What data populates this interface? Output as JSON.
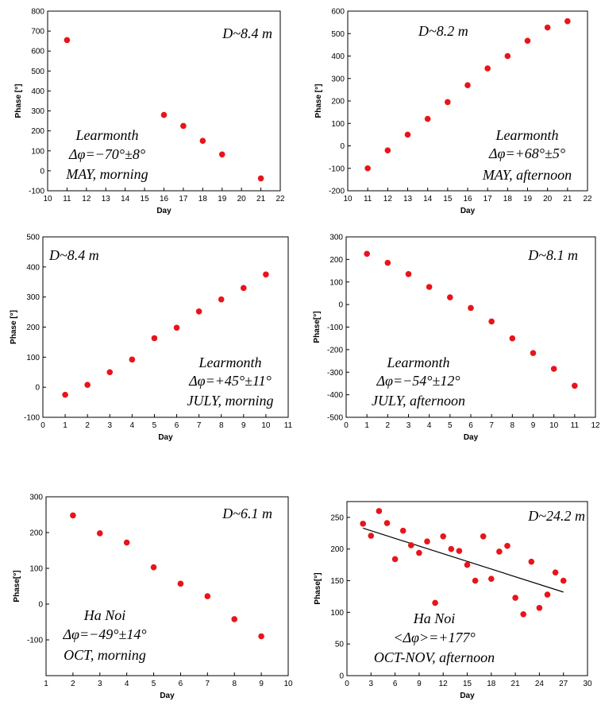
{
  "chart_data": [
    {
      "type": "scatter",
      "xlabel": "Day",
      "ylabel": "Phase [°]",
      "xlim": [
        10,
        22
      ],
      "ylim": [
        -100,
        800
      ],
      "xticks": [
        10,
        11,
        12,
        13,
        14,
        15,
        16,
        17,
        18,
        19,
        20,
        21,
        22
      ],
      "yticks": [
        -100,
        0,
        100,
        200,
        300,
        400,
        500,
        600,
        700,
        800
      ],
      "x": [
        11,
        16,
        17,
        18,
        19,
        21
      ],
      "y": [
        655,
        280,
        225,
        150,
        82,
        -38
      ],
      "annotations": {
        "distance": "D~8.4 m",
        "site": "Learmonth",
        "shift": "Δφ=−70°±8°",
        "period": "MAY, morning"
      }
    },
    {
      "type": "scatter",
      "xlabel": "Day",
      "ylabel": "Phase [°]",
      "xlim": [
        10,
        22
      ],
      "ylim": [
        -200,
        600
      ],
      "xticks": [
        10,
        11,
        12,
        13,
        14,
        15,
        16,
        17,
        18,
        19,
        20,
        21,
        22
      ],
      "yticks": [
        -200,
        -100,
        0,
        100,
        200,
        300,
        400,
        500,
        600
      ],
      "x": [
        11,
        12,
        13,
        14,
        15,
        16,
        17,
        18,
        19,
        20,
        21
      ],
      "y": [
        -100,
        -20,
        50,
        120,
        195,
        270,
        345,
        400,
        468,
        527,
        555
      ],
      "annotations": {
        "distance": "D~8.2 m",
        "site": "Learmonth",
        "shift": "Δφ=+68°±5°",
        "period": "MAY, afternoon"
      }
    },
    {
      "type": "scatter",
      "xlabel": "Day",
      "ylabel": "Phase [°]",
      "xlim": [
        0,
        11
      ],
      "ylim": [
        -100,
        500
      ],
      "xticks": [
        0,
        1,
        2,
        3,
        4,
        5,
        6,
        7,
        8,
        9,
        10,
        11
      ],
      "yticks": [
        -100,
        0,
        100,
        200,
        300,
        400,
        500
      ],
      "x": [
        1,
        2,
        3,
        4,
        5,
        6,
        7,
        8,
        9,
        10
      ],
      "y": [
        -25,
        8,
        50,
        92,
        163,
        198,
        252,
        292,
        330,
        375
      ],
      "annotations": {
        "distance": "D~8.4 m",
        "site": "Learmonth",
        "shift": "Δφ=+45°±11°",
        "period": "JULY, morning"
      }
    },
    {
      "type": "scatter",
      "xlabel": "Day",
      "ylabel": "Phase[°]",
      "xlim": [
        0,
        12
      ],
      "ylim": [
        -500,
        300
      ],
      "xticks": [
        0,
        1,
        2,
        3,
        4,
        5,
        6,
        7,
        8,
        9,
        10,
        11,
        12
      ],
      "yticks": [
        -500,
        -400,
        -300,
        -200,
        -100,
        0,
        100,
        200,
        300
      ],
      "x": [
        1,
        2,
        3,
        4,
        5,
        6,
        7,
        8,
        9,
        10,
        11
      ],
      "y": [
        225,
        185,
        135,
        78,
        32,
        -15,
        -75,
        -150,
        -215,
        -285,
        -360
      ],
      "annotations": {
        "distance": "D~8.1 m",
        "site": "Learmonth",
        "shift": "Δφ=−54°±12°",
        "period": "JULY, afternoon"
      }
    },
    {
      "type": "scatter",
      "xlabel": "Day",
      "ylabel": "Phase[°]",
      "xlim": [
        1,
        10
      ],
      "ylim": [
        -200,
        300
      ],
      "xticks": [
        1,
        2,
        3,
        4,
        5,
        6,
        7,
        8,
        9,
        10
      ],
      "yticks": [
        -100,
        0,
        100,
        200,
        300
      ],
      "x": [
        2,
        3,
        4,
        5,
        6,
        7,
        8,
        9
      ],
      "y": [
        248,
        198,
        172,
        103,
        57,
        22,
        -42,
        -90
      ],
      "annotations": {
        "distance": "D~6.1 m",
        "site": "Ha Noi",
        "shift": "Δφ=−49°±14°",
        "period": "OCT, morning"
      }
    },
    {
      "type": "scatter",
      "xlabel": "Day",
      "ylabel": "Phase[°]",
      "xlim": [
        0,
        30
      ],
      "ylim": [
        0,
        275
      ],
      "xticks": [
        0,
        3,
        6,
        9,
        12,
        15,
        18,
        21,
        24,
        27,
        30
      ],
      "yticks": [
        0,
        50,
        100,
        150,
        200,
        250
      ],
      "x": [
        2,
        3,
        4,
        5,
        6,
        7,
        8,
        9,
        10,
        11,
        12,
        13,
        14,
        15,
        16,
        17,
        18,
        19,
        20,
        21,
        22,
        23,
        24,
        25,
        26,
        27
      ],
      "y": [
        240,
        221,
        260,
        241,
        184,
        229,
        206,
        194,
        212,
        115,
        220,
        200,
        197,
        175,
        150,
        220,
        153,
        196,
        205,
        123,
        97,
        180,
        107,
        128,
        163,
        150
      ],
      "fit": {
        "x": [
          2,
          27
        ],
        "y": [
          233,
          132
        ]
      },
      "annotations": {
        "distance": "D~24.2 m",
        "site": "Ha Noi",
        "shift": "<Δφ>=+177°",
        "period": "OCT-NOV, afternoon"
      }
    }
  ]
}
